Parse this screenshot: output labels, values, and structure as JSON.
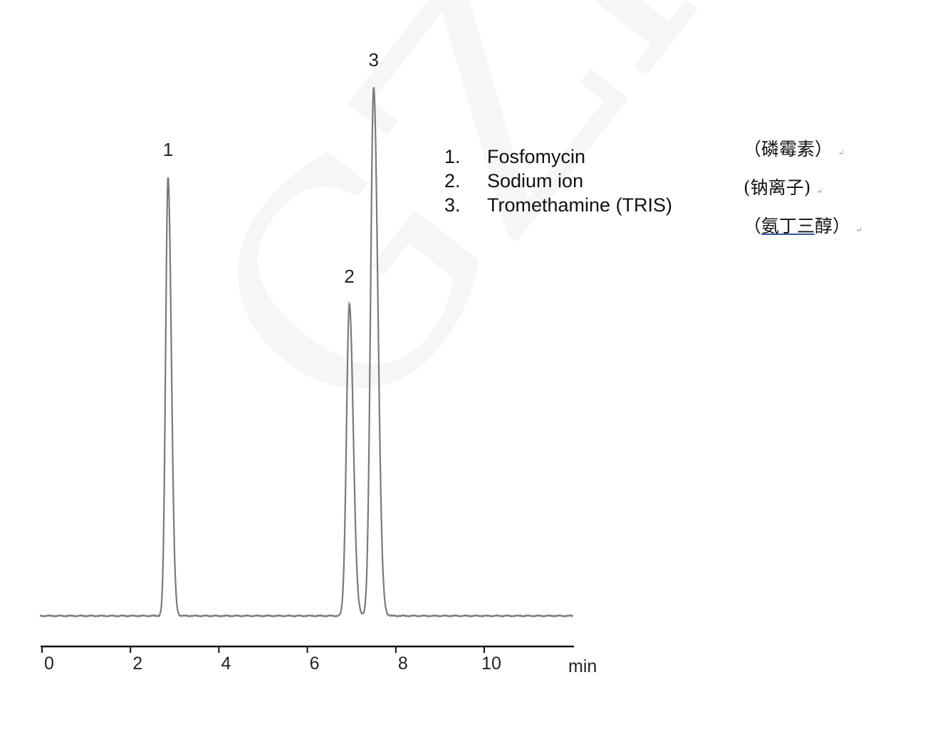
{
  "watermark": "GZHM",
  "chart_data": {
    "type": "line",
    "title": "",
    "xlabel": "min",
    "ylabel": "",
    "xlim": [
      0,
      11.8
    ],
    "ylim": [
      0,
      100
    ],
    "x_ticks": [
      "0",
      "2",
      "4",
      "6",
      "8",
      "10"
    ],
    "x_tick_values": [
      0,
      2,
      4,
      6,
      8,
      10
    ],
    "grid": false,
    "y_axis_shown": false,
    "line_color": "#7a7a7a",
    "peaks": [
      {
        "label": "1",
        "retention_time": 2.85,
        "relative_height": 83,
        "width_sigma": 0.055
      },
      {
        "label": "2",
        "retention_time": 6.95,
        "relative_height": 59,
        "width_sigma": 0.065
      },
      {
        "label": "3",
        "retention_time": 7.5,
        "relative_height": 100,
        "width_sigma": 0.07
      }
    ],
    "legend": [
      {
        "num": "1.",
        "name": "Fosfomycin",
        "cn": "（磷霉素）"
      },
      {
        "num": "2.",
        "name": "Sodium ion",
        "cn": "(钠离子)"
      },
      {
        "num": "3.",
        "name": "Tromethamine (TRIS)",
        "cn_pre": "（",
        "cn_ul": "氨丁三",
        "cn_post": "醇）"
      }
    ],
    "return_mark": "↵"
  }
}
